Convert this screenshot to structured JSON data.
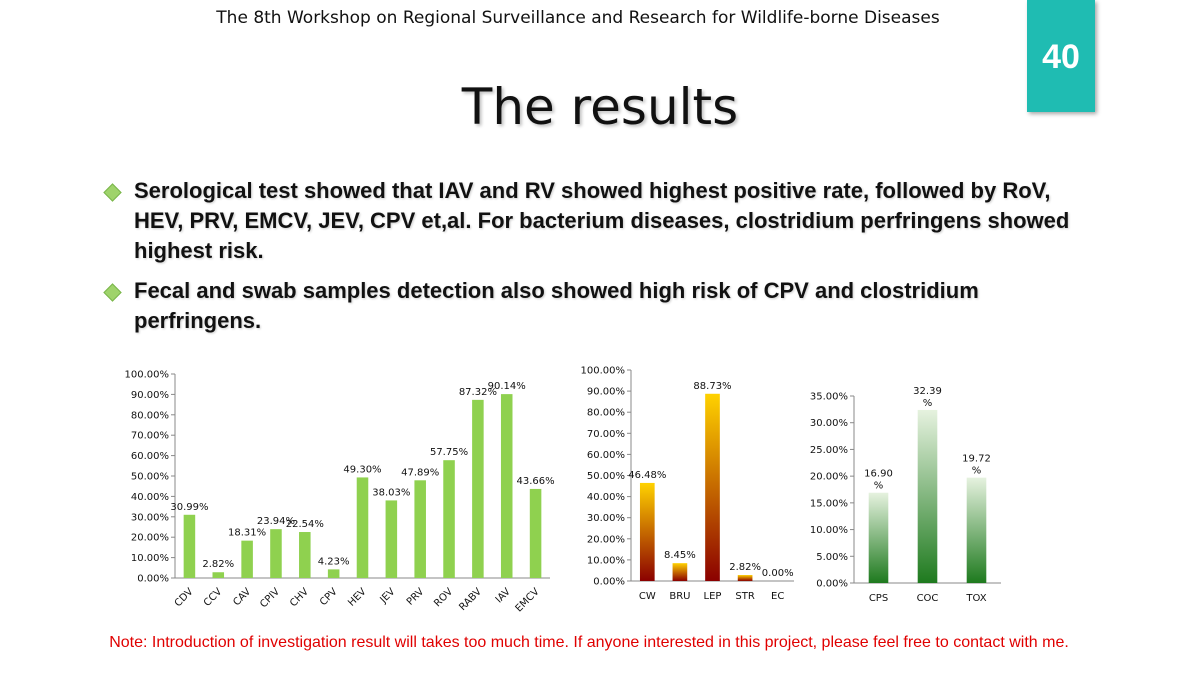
{
  "header": {
    "workshop": "The 8th Workshop on Regional Surveillance and Research for Wildlife-borne Diseases",
    "slide_number": "40",
    "title": "The results"
  },
  "bullets": [
    "Serological test showed that IAV and RV showed highest positive rate, followed by RoV, HEV, PRV, EMCV, JEV, CPV et,al. For bacterium diseases, clostridium perfringens showed highest risk.",
    "Fecal and swab samples detection also showed high risk of CPV and clostridium perfringens."
  ],
  "colors": {
    "badge": "#1fbcb2",
    "bullet_marker": "#9fd36b",
    "chart1_bar": "#8fd14f",
    "chart2_bar_top": "#ffd200",
    "chart2_bar_bottom": "#8b0000",
    "chart3_bar_top": "#e6f2df",
    "chart3_bar_bottom": "#1e7a1e",
    "note": "#e00000"
  },
  "chart_data": [
    {
      "type": "bar",
      "categories": [
        "CDV",
        "CCV",
        "CAV",
        "CPIV",
        "CHV",
        "CPV",
        "HEV",
        "JEV",
        "PRV",
        "ROV",
        "RABV",
        "IAV",
        "EMCV"
      ],
      "values": [
        30.99,
        2.82,
        18.31,
        23.94,
        22.54,
        4.23,
        49.3,
        38.03,
        47.89,
        57.75,
        87.32,
        90.14,
        43.66
      ],
      "labels": [
        "30.99%",
        "2.82%",
        "18.31%",
        "23.94%",
        "22.54%",
        "4.23%",
        "49.30%",
        "38.03%",
        "47.89%",
        "57.75%",
        "87.32%",
        "90.14%",
        "43.66%"
      ],
      "ylim": [
        0,
        100
      ],
      "yticks": [
        "0.00%",
        "10.00%",
        "20.00%",
        "30.00%",
        "40.00%",
        "50.00%",
        "60.00%",
        "70.00%",
        "80.00%",
        "90.00%",
        "100.00%"
      ],
      "grid": false,
      "legend": "none"
    },
    {
      "type": "bar",
      "categories": [
        "CW",
        "BRU",
        "LEP",
        "STR",
        "EC"
      ],
      "values": [
        46.48,
        8.45,
        88.73,
        2.82,
        0.0
      ],
      "labels": [
        "46.48%",
        "8.45%",
        "88.73%",
        "2.82%",
        "0.00%"
      ],
      "ylim": [
        0,
        100
      ],
      "yticks": [
        "0.00%",
        "10.00%",
        "20.00%",
        "30.00%",
        "40.00%",
        "50.00%",
        "60.00%",
        "70.00%",
        "80.00%",
        "90.00%",
        "100.00%"
      ],
      "grid": false,
      "legend": "none"
    },
    {
      "type": "bar",
      "categories": [
        "CPS",
        "COC",
        "TOX"
      ],
      "values": [
        16.9,
        32.39,
        19.72
      ],
      "labels": [
        [
          "16.90",
          "%"
        ],
        [
          "32.39",
          "%"
        ],
        [
          "19.72",
          "%"
        ]
      ],
      "ylim": [
        0,
        35
      ],
      "yticks": [
        "0.00%",
        "5.00%",
        "10.00%",
        "15.00%",
        "20.00%",
        "25.00%",
        "30.00%",
        "35.00%"
      ],
      "grid": false,
      "legend": "none"
    }
  ],
  "note": "Note: Introduction of investigation result will takes too much time. If anyone interested in this project, please feel free to contact with me."
}
